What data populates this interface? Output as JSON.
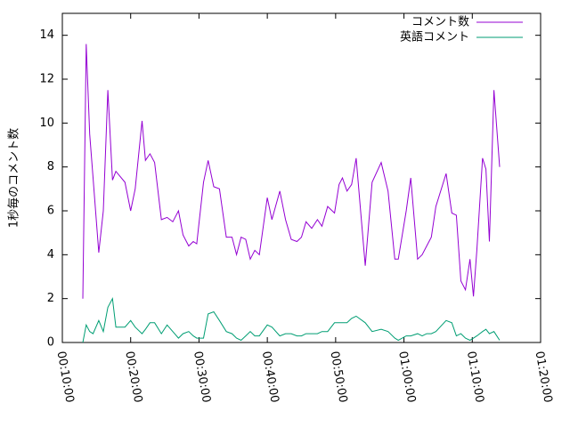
{
  "chart_data": {
    "type": "line",
    "ylabel": "1秒毎のコメント数",
    "x": [
      780,
      810,
      840,
      870,
      920,
      960,
      1000,
      1040,
      1070,
      1150,
      1200,
      1240,
      1300,
      1330,
      1370,
      1410,
      1470,
      1520,
      1570,
      1620,
      1660,
      1710,
      1750,
      1780,
      1840,
      1880,
      1930,
      1980,
      2040,
      2090,
      2130,
      2170,
      2210,
      2250,
      2290,
      2330,
      2400,
      2440,
      2510,
      2560,
      2610,
      2660,
      2700,
      2740,
      2790,
      2840,
      2880,
      2930,
      2990,
      3030,
      3060,
      3100,
      3140,
      3180,
      3260,
      3320,
      3400,
      3460,
      3520,
      3550,
      3620,
      3660,
      3720,
      3760,
      3800,
      3840,
      3880,
      3970,
      4020,
      4060,
      4100,
      4140,
      4180,
      4210,
      4240,
      4290,
      4320,
      4350,
      4390,
      4440
    ],
    "series": [
      {
        "name": "コメント数",
        "color": "#9400d3",
        "values": [
          2,
          13.6,
          9.5,
          7.5,
          4.1,
          6,
          11.5,
          7.4,
          7.8,
          7.3,
          6,
          7,
          10.1,
          8.3,
          8.6,
          8.2,
          5.6,
          5.7,
          5.5,
          6,
          4.9,
          4.4,
          4.6,
          4.5,
          7.3,
          8.3,
          7.1,
          7,
          4.8,
          4.8,
          4,
          4.8,
          4.7,
          3.8,
          4.2,
          4,
          6.6,
          5.6,
          6.9,
          5.6,
          4.7,
          4.6,
          4.8,
          5.5,
          5.2,
          5.6,
          5.3,
          6.2,
          5.9,
          7.2,
          7.5,
          6.9,
          7.2,
          8.4,
          3.5,
          7.3,
          8.2,
          6.9,
          3.8,
          3.8,
          6,
          7.5,
          3.8,
          4,
          4.4,
          4.8,
          6.2,
          7.7,
          5.9,
          5.8,
          2.8,
          2.4,
          3.8,
          2.1,
          4.2,
          8.4,
          7.9,
          4.6,
          11.5,
          8
        ]
      },
      {
        "name": "英語コメント",
        "color": "#009e73",
        "values": [
          0,
          0.8,
          0.5,
          0.4,
          1,
          0.5,
          1.6,
          2,
          0.7,
          0.7,
          1,
          0.7,
          0.4,
          0.6,
          0.9,
          0.9,
          0.4,
          0.8,
          0.5,
          0.2,
          0.4,
          0.5,
          0.3,
          0.2,
          0.2,
          1.3,
          1.4,
          1,
          0.5,
          0.4,
          0.2,
          0.1,
          0.3,
          0.5,
          0.3,
          0.3,
          0.8,
          0.7,
          0.3,
          0.4,
          0.4,
          0.3,
          0.3,
          0.4,
          0.4,
          0.4,
          0.5,
          0.5,
          0.9,
          0.9,
          0.9,
          0.9,
          1.1,
          1.2,
          0.9,
          0.5,
          0.6,
          0.5,
          0.2,
          0.1,
          0.3,
          0.3,
          0.4,
          0.3,
          0.4,
          0.4,
          0.5,
          1,
          0.9,
          0.3,
          0.4,
          0.2,
          0.1,
          0.2,
          0.3,
          0.5,
          0.6,
          0.4,
          0.5,
          0.1
        ]
      }
    ],
    "xlim": [
      600,
      4800
    ],
    "xticks": [
      {
        "value": 600,
        "label": "00:10:00"
      },
      {
        "value": 1200,
        "label": "00:20:00"
      },
      {
        "value": 1800,
        "label": "00:30:00"
      },
      {
        "value": 2400,
        "label": "00:40:00"
      },
      {
        "value": 3000,
        "label": "00:50:00"
      },
      {
        "value": 3600,
        "label": "01:00:00"
      },
      {
        "value": 4200,
        "label": "01:10:00"
      },
      {
        "value": 4800,
        "label": "01:20:00"
      }
    ],
    "ylim": [
      0,
      15
    ],
    "yticks": [
      0,
      2,
      4,
      6,
      8,
      10,
      12,
      14
    ],
    "legend": "top-right"
  }
}
